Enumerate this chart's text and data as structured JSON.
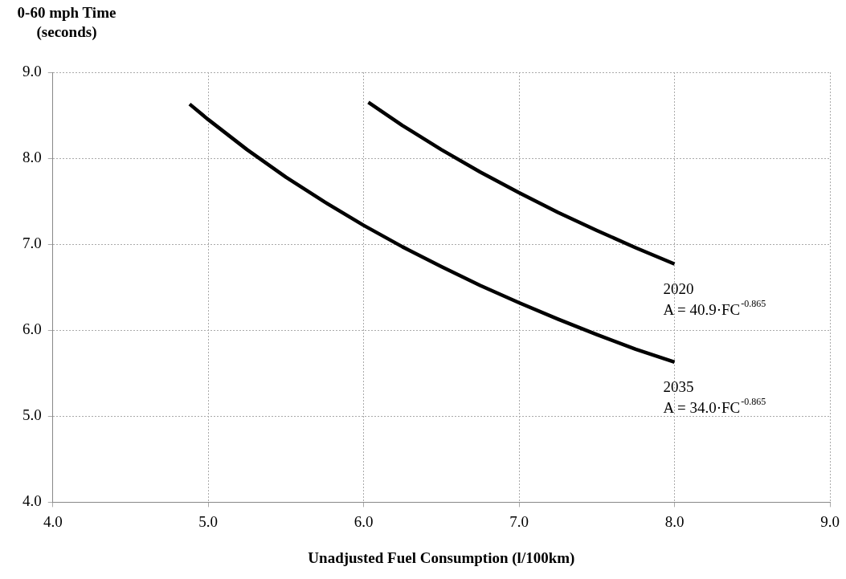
{
  "chart_data": {
    "type": "line",
    "xlabel": "Unadjusted Fuel Consumption (l/100km)",
    "ylabel": "0-60 mph Time (seconds)",
    "xlim": [
      4,
      9
    ],
    "xticks": [
      {
        "value": 4,
        "label": "4.0"
      },
      {
        "value": 5,
        "label": "5.0"
      },
      {
        "value": 6,
        "label": "6.0"
      },
      {
        "value": 7,
        "label": "7.0"
      },
      {
        "value": 8,
        "label": "8.0"
      },
      {
        "value": 9,
        "label": "9.0"
      }
    ],
    "ylim": [
      4,
      9
    ],
    "yticks": [
      {
        "value": 4,
        "label": "4.0"
      },
      {
        "value": 5,
        "label": "5.0"
      },
      {
        "value": 6,
        "label": "6.0"
      },
      {
        "value": 7,
        "label": "7.0"
      },
      {
        "value": 8,
        "label": "8.0"
      },
      {
        "value": 9,
        "label": "9.0"
      }
    ],
    "grid": true,
    "legend": false,
    "marker": "none",
    "line_style": "solid",
    "series": [
      {
        "name": "2020",
        "color": "#000000",
        "x": [
          6.03,
          6.25,
          6.5,
          6.75,
          7.0,
          7.25,
          7.5,
          7.75,
          8.0
        ],
        "values": [
          8.65,
          8.38,
          8.1,
          7.84,
          7.6,
          7.37,
          7.16,
          6.96,
          6.77
        ]
      },
      {
        "name": "2035",
        "color": "#000000",
        "x": [
          4.88,
          5.0,
          5.25,
          5.5,
          5.75,
          6.0,
          6.25,
          6.5,
          6.75,
          7.0,
          7.25,
          7.5,
          7.75,
          8.0
        ],
        "values": [
          8.63,
          8.45,
          8.1,
          7.78,
          7.49,
          7.22,
          6.97,
          6.74,
          6.52,
          6.32,
          6.13,
          5.95,
          5.78,
          5.63
        ]
      }
    ],
    "annotations": [
      "A = 40.9·FC$^{-0.865}$",
      "A = 34.0·FC$^{-0.865}$"
    ]
  }
}
